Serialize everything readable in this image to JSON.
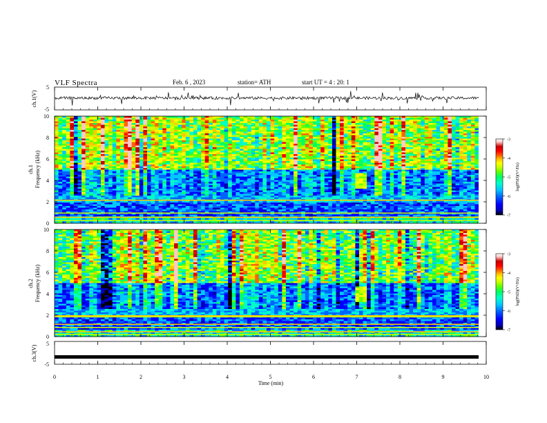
{
  "header": {
    "title": "VLF Spectra",
    "date": "Feb. 6 , 2023",
    "station": "station= ATH",
    "start": "start UT =   4 : 20: 1"
  },
  "chart_data": [
    {
      "type": "line",
      "panel": "ch1-waveform",
      "ylabel": "ch.1(V)",
      "ylim": [
        -5,
        5
      ],
      "yticks": [
        "5",
        "-5"
      ],
      "xlim": [
        0,
        10
      ],
      "baseline_value": 0.2,
      "series": [
        {
          "color": "#000000"
        }
      ]
    },
    {
      "type": "heatmap",
      "panel": "ch1-spectrogram",
      "ylabel_line1": "ch.1",
      "ylabel_line2": "Frequency  (kHz)",
      "ylim": [
        0,
        10
      ],
      "yticks": [
        "0",
        "2",
        "4",
        "6",
        "8",
        "10"
      ],
      "xlim": [
        0,
        10
      ],
      "colorbar": {
        "label": "log(PSD)(V²/Hz)",
        "ticks": [
          "-3",
          "-4",
          "-5",
          "-6",
          "-7"
        ],
        "range": [
          -7,
          -3
        ]
      }
    },
    {
      "type": "heatmap",
      "panel": "ch2-spectrogram",
      "ylabel_line1": "ch.2",
      "ylabel_line2": "Frequency  (kHz)",
      "ylim": [
        0,
        10
      ],
      "yticks": [
        "0",
        "2",
        "4",
        "6",
        "8",
        "10"
      ],
      "xlim": [
        0,
        10
      ],
      "colorbar": {
        "label": "log(PSD)(V²/Hz)",
        "ticks": [
          "-3",
          "-4",
          "-5",
          "-6",
          "-7"
        ],
        "range": [
          -7,
          -3
        ]
      }
    },
    {
      "type": "line",
      "panel": "ch3-waveform",
      "ylabel": "ch.3(V)",
      "ylim": [
        -5,
        5
      ],
      "yticks": [
        "5",
        "-5"
      ],
      "xlim": [
        0,
        10
      ],
      "baseline_value": -1.8,
      "series": [
        {
          "color": "#000000"
        }
      ]
    }
  ],
  "xaxis": {
    "label": "Time  (min)",
    "ticks": [
      "0",
      "1",
      "2",
      "3",
      "4",
      "5",
      "6",
      "7",
      "8",
      "9",
      "10"
    ]
  },
  "colors": {
    "scale": [
      "#000000",
      "#0000b4",
      "#0000ff",
      "#0064ff",
      "#00c8ff",
      "#00ffc8",
      "#00ff64",
      "#64ff00",
      "#c8ff00",
      "#ffff00",
      "#ffc800",
      "#ff6400",
      "#ff0000",
      "#c80000",
      "#ffc8c8",
      "#ffffff"
    ]
  }
}
